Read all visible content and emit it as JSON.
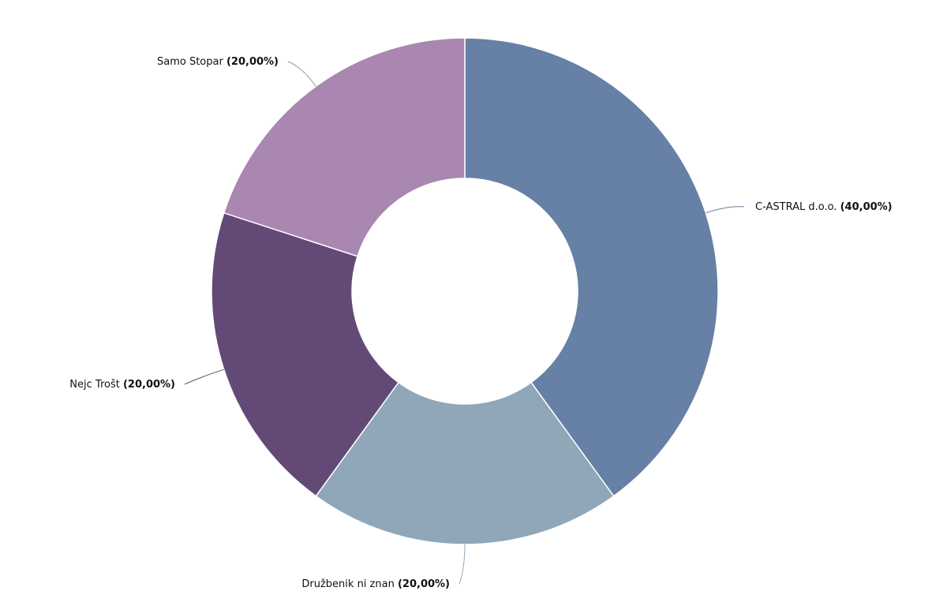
{
  "chart_data": {
    "type": "donut",
    "categories": [
      "C-ASTRAL d.o.o.",
      "Družbenik ni znan",
      "Nejc Trošt",
      "Samo Stopar"
    ],
    "values": [
      40,
      20,
      20,
      20
    ],
    "value_labels": [
      "(40,00%)",
      "(20,00%)",
      "(20,00%)",
      "(20,00%)"
    ],
    "colors": [
      "#6680a6",
      "#8fa7b8",
      "#634a76",
      "#a987b0"
    ]
  }
}
